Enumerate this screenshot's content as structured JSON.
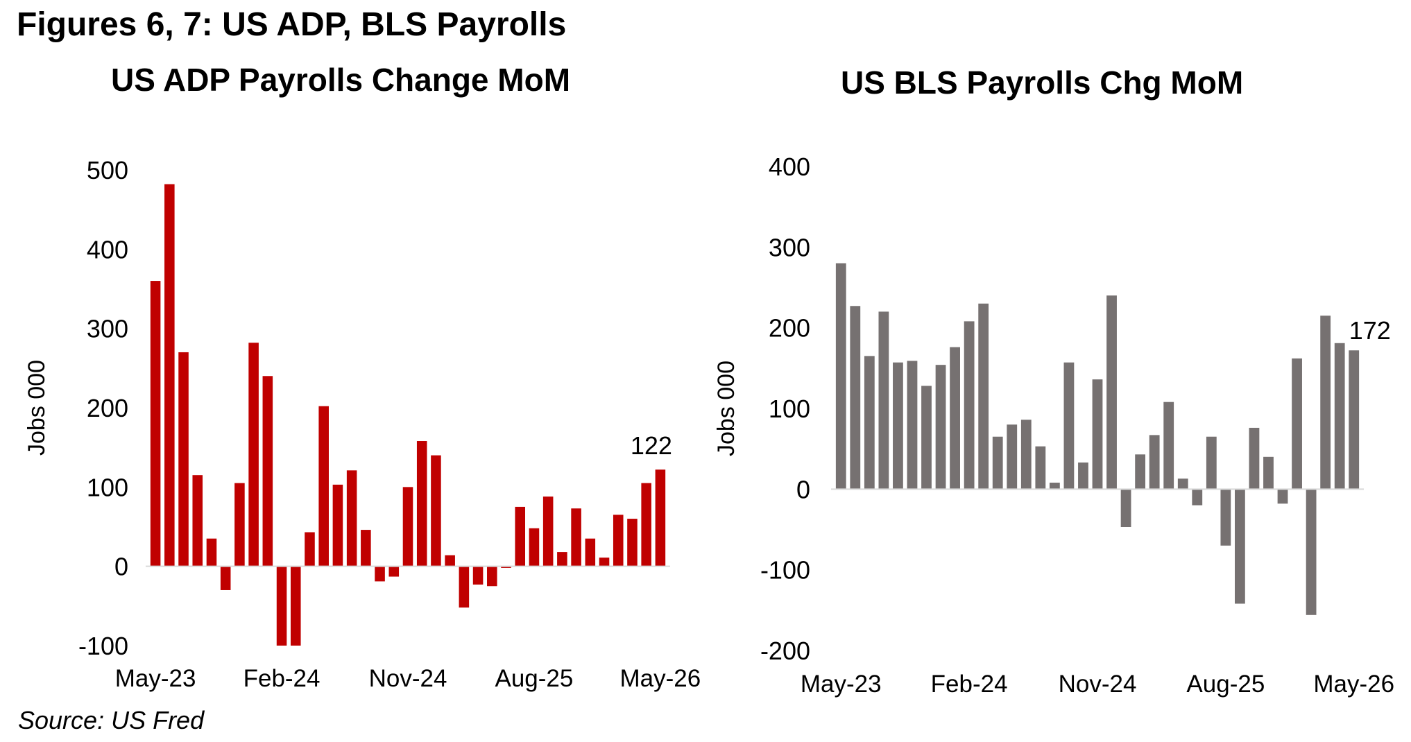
{
  "figure_title": "Figures 6, 7: US ADP, BLS Payrolls",
  "source": "Source: US Fred",
  "colors": {
    "adp_bar": "#c00000",
    "bls_bar": "#767171",
    "zero_line": "#d9d9d9"
  },
  "chart_data": [
    {
      "type": "bar",
      "title": "US ADP Payrolls Change MoM",
      "xlabel": "",
      "ylabel": "Jobs 000",
      "ylim": [
        -100,
        500
      ],
      "yticks": [
        "500",
        "400",
        "300",
        "200",
        "100",
        "0",
        "-100"
      ],
      "categories": [
        "May-23",
        "Jun-23",
        "Jul-23",
        "Aug-23",
        "Sep-23",
        "Oct-23",
        "Nov-23",
        "Dec-23",
        "Jan-24",
        "Feb-24",
        "Mar-24",
        "Apr-24",
        "May-24",
        "Jun-24",
        "Jul-24",
        "Aug-24",
        "Sep-24",
        "Oct-24",
        "Nov-24",
        "Dec-24",
        "Jan-25",
        "Feb-25",
        "Mar-25",
        "Apr-25",
        "May-25",
        "Jun-25",
        "Jul-25",
        "Aug-25",
        "Sep-25",
        "Oct-25",
        "Nov-25",
        "Dec-25",
        "Jan-26",
        "Feb-26",
        "Mar-26",
        "Apr-26",
        "May-26"
      ],
      "xtick_labels": [
        "May-23",
        "Feb-24",
        "Nov-24",
        "Aug-25",
        "May-26"
      ],
      "values": [
        360,
        482,
        270,
        115,
        35,
        -30,
        105,
        282,
        240,
        -100,
        -100,
        43,
        202,
        103,
        121,
        46,
        -19,
        -13,
        100,
        158,
        140,
        14,
        -52,
        -23,
        -25,
        -2,
        75,
        48,
        88,
        18,
        73,
        35,
        11,
        65,
        60,
        105,
        122
      ],
      "data_labels": [
        {
          "category": "May-26",
          "text": "122"
        }
      ],
      "grid": false,
      "legend": "none"
    },
    {
      "type": "bar",
      "title": "US BLS Payrolls Chg MoM",
      "xlabel": "",
      "ylabel": "Jobs 000",
      "ylim": [
        -200,
        400
      ],
      "yticks": [
        "400",
        "300",
        "200",
        "100",
        "0",
        "-100",
        "-200"
      ],
      "categories": [
        "May-23",
        "Jun-23",
        "Jul-23",
        "Aug-23",
        "Sep-23",
        "Oct-23",
        "Nov-23",
        "Dec-23",
        "Jan-24",
        "Feb-24",
        "Mar-24",
        "Apr-24",
        "May-24",
        "Jun-24",
        "Jul-24",
        "Aug-24",
        "Sep-24",
        "Oct-24",
        "Nov-24",
        "Dec-24",
        "Jan-25",
        "Feb-25",
        "Mar-25",
        "Apr-25",
        "May-25",
        "Jun-25",
        "Jul-25",
        "Aug-25",
        "Sep-25",
        "Oct-25",
        "Nov-25",
        "Dec-25",
        "Jan-26",
        "Feb-26",
        "Mar-26",
        "Apr-26",
        "May-26"
      ],
      "xtick_labels": [
        "May-23",
        "Feb-24",
        "Nov-24",
        "Aug-25",
        "May-26"
      ],
      "values": [
        280,
        227,
        165,
        220,
        157,
        159,
        128,
        154,
        176,
        208,
        230,
        65,
        80,
        86,
        53,
        8,
        157,
        33,
        136,
        240,
        -47,
        43,
        67,
        108,
        13,
        -20,
        65,
        -70,
        -142,
        76,
        40,
        -18,
        162,
        -156,
        215,
        181,
        172
      ],
      "data_labels": [
        {
          "category": "May-26",
          "text": "172"
        }
      ],
      "grid": false,
      "legend": "none"
    }
  ]
}
